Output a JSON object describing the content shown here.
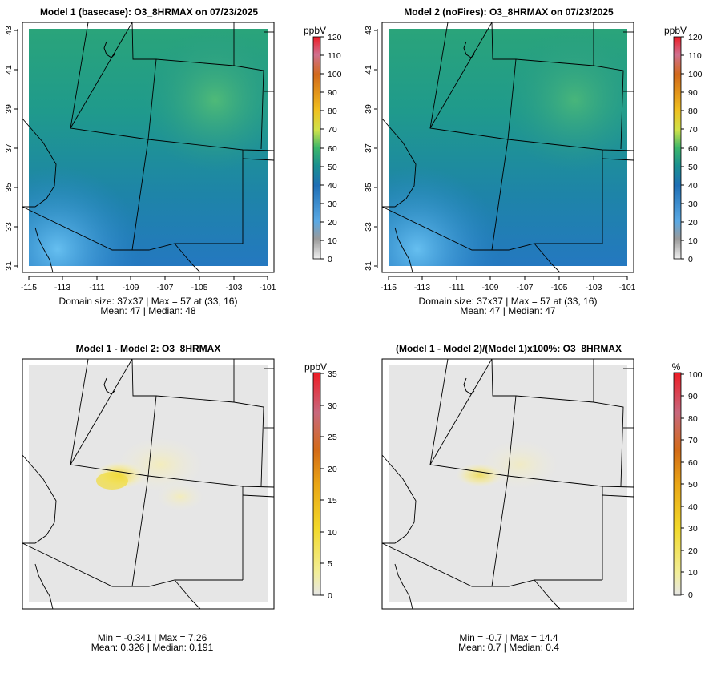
{
  "panels": [
    {
      "title": "Model 1 (basecase): O3_8HRMAX on 07/23/2025",
      "legend": {
        "unit": "ppbV",
        "ticks": [
          "120",
          "110",
          "100",
          "90",
          "80",
          "70",
          "60",
          "50",
          "40",
          "30",
          "20",
          "10",
          "0"
        ]
      },
      "x_ticks": [
        "-115",
        "-113",
        "-111",
        "-109",
        "-107",
        "-105",
        "-103",
        "-101"
      ],
      "y_ticks": [
        "43",
        "41",
        "39",
        "37",
        "35",
        "33",
        "31"
      ],
      "caption_line1": "Domain size: 37x37 | Max = 57 at (33, 16)",
      "caption_line2": "Mean: 47 |  Median: 48"
    },
    {
      "title": "Model 2 (noFires): O3_8HRMAX on 07/23/2025",
      "legend": {
        "unit": "ppbV",
        "ticks": [
          "120",
          "110",
          "100",
          "90",
          "80",
          "70",
          "60",
          "50",
          "40",
          "30",
          "20",
          "10",
          "0"
        ]
      },
      "x_ticks": [
        "-115",
        "-113",
        "-111",
        "-109",
        "-107",
        "-105",
        "-103",
        "-101"
      ],
      "y_ticks": [
        "43",
        "41",
        "39",
        "37",
        "35",
        "33",
        "31"
      ],
      "caption_line1": "Domain size: 37x37 | Max = 57 at (33, 16)",
      "caption_line2": "Mean: 47 |  Median: 47"
    },
    {
      "title": "Model 1 - Model 2: O3_8HRMAX",
      "legend": {
        "unit": "ppbV",
        "ticks": [
          "35",
          "30",
          "25",
          "20",
          "15",
          "10",
          "5",
          "0"
        ]
      },
      "caption_line1": "Min = -0.341 | Max = 7.26",
      "caption_line2": "Mean: 0.326 |  Median: 0.191"
    },
    {
      "title": "(Model 1 - Model 2)/(Model 1)x100%: O3_8HRMAX",
      "legend": {
        "unit": "%",
        "ticks": [
          "100",
          "90",
          "80",
          "70",
          "60",
          "50",
          "40",
          "30",
          "20",
          "10",
          "0"
        ]
      },
      "caption_line1": "Min = -0.7 | Max = 14.4",
      "caption_line2": "Mean: 0.7 |  Median: 0.4"
    }
  ],
  "colors": {
    "map_low": "#5db6ea",
    "map_mid": "#1a70b8",
    "map_high": "#3aa86a",
    "diff_background": "#e6e6e6",
    "diff_plume": "#f3e14a",
    "colorbar_top": "#ee1c25"
  }
}
